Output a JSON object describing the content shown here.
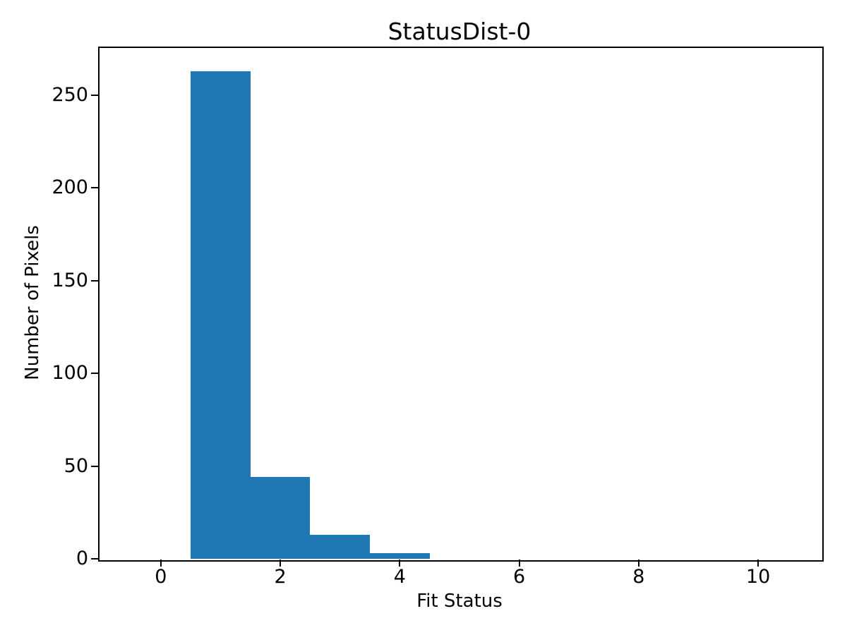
{
  "chart_data": {
    "type": "bar",
    "subtype": "histogram",
    "title": "StatusDist-0",
    "xlabel": "Fit Status",
    "ylabel": "Number of Pixels",
    "bin_edges": [
      -0.5,
      0.5,
      1.5,
      2.5,
      3.5,
      4.5,
      5.5,
      6.5,
      7.5,
      8.5,
      9.5,
      10.5
    ],
    "counts": [
      0,
      263,
      44,
      13,
      3,
      0,
      0,
      0,
      0,
      0,
      0
    ],
    "xticks": [
      0,
      2,
      4,
      6,
      8,
      10
    ],
    "yticks": [
      0,
      50,
      100,
      150,
      200,
      250
    ],
    "xlim": [
      -1.05,
      11.05
    ],
    "ylim": [
      0,
      276.15
    ],
    "grid": false,
    "legend": "none",
    "bar_color": "#1f77b4",
    "axis_color": "#000000",
    "background_color": "#ffffff"
  }
}
